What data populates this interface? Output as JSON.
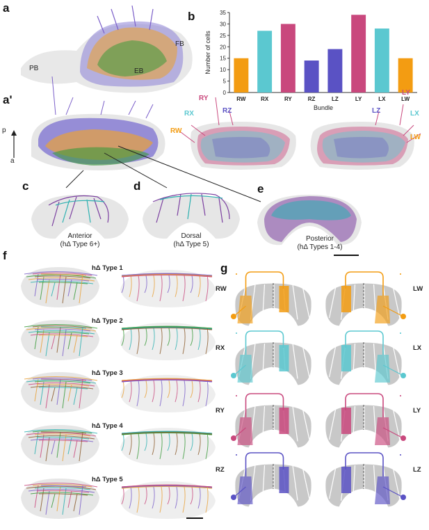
{
  "colors": {
    "RW": "#f39c12",
    "RX": "#5bc8d0",
    "RY": "#c9487d",
    "RZ": "#5a52c4",
    "LZ": "#5a52c4",
    "LY": "#c9487d",
    "LX": "#5bc8d0",
    "LW": "#f39c12",
    "neuropil": "#e6e6e6",
    "purple": "#7b5fc9",
    "green": "#3a9a3a",
    "orange": "#e8a13a"
  },
  "panels": {
    "a": "a",
    "a_prime": "a'",
    "b": "b",
    "c": "c",
    "d": "d",
    "e": "e",
    "f": "f",
    "g": "g"
  },
  "panel_a": {
    "pb": "PB",
    "fb": "FB",
    "eb": "EB"
  },
  "panel_a_prime": {
    "p": "p",
    "a": "a"
  },
  "chart_data": {
    "type": "bar",
    "categories": [
      "RW",
      "RX",
      "RY",
      "RZ",
      "LZ",
      "LY",
      "LX",
      "LW"
    ],
    "values": [
      15,
      27,
      30,
      14,
      19,
      34,
      28,
      15
    ],
    "xlabel": "Bundle",
    "ylabel": "Number of cells",
    "ylim": [
      0,
      35
    ],
    "yticks": [
      0,
      5,
      10,
      15,
      20,
      25,
      30,
      35
    ],
    "grid": false,
    "legend": "none"
  },
  "bundle_labels_left": [
    "RY",
    "RZ",
    "RX",
    "RW"
  ],
  "bundle_labels_right": [
    "LY",
    "LZ",
    "LX",
    "LW"
  ],
  "captions": {
    "c": [
      "Anterior",
      "(hΔ Type 6+)"
    ],
    "d": [
      "Dorsal",
      "(hΔ Type 5)"
    ],
    "e": [
      "Posterior",
      "(hΔ Types 1-4)"
    ]
  },
  "types": [
    "hΔ Type 1",
    "hΔ Type 2",
    "hΔ Type 3",
    "hΔ Type 4",
    "hΔ Type 5"
  ],
  "panel_g": {
    "left": [
      "RW",
      "RX",
      "RY",
      "RZ"
    ],
    "right": [
      "LW",
      "LX",
      "LY",
      "LZ"
    ]
  }
}
